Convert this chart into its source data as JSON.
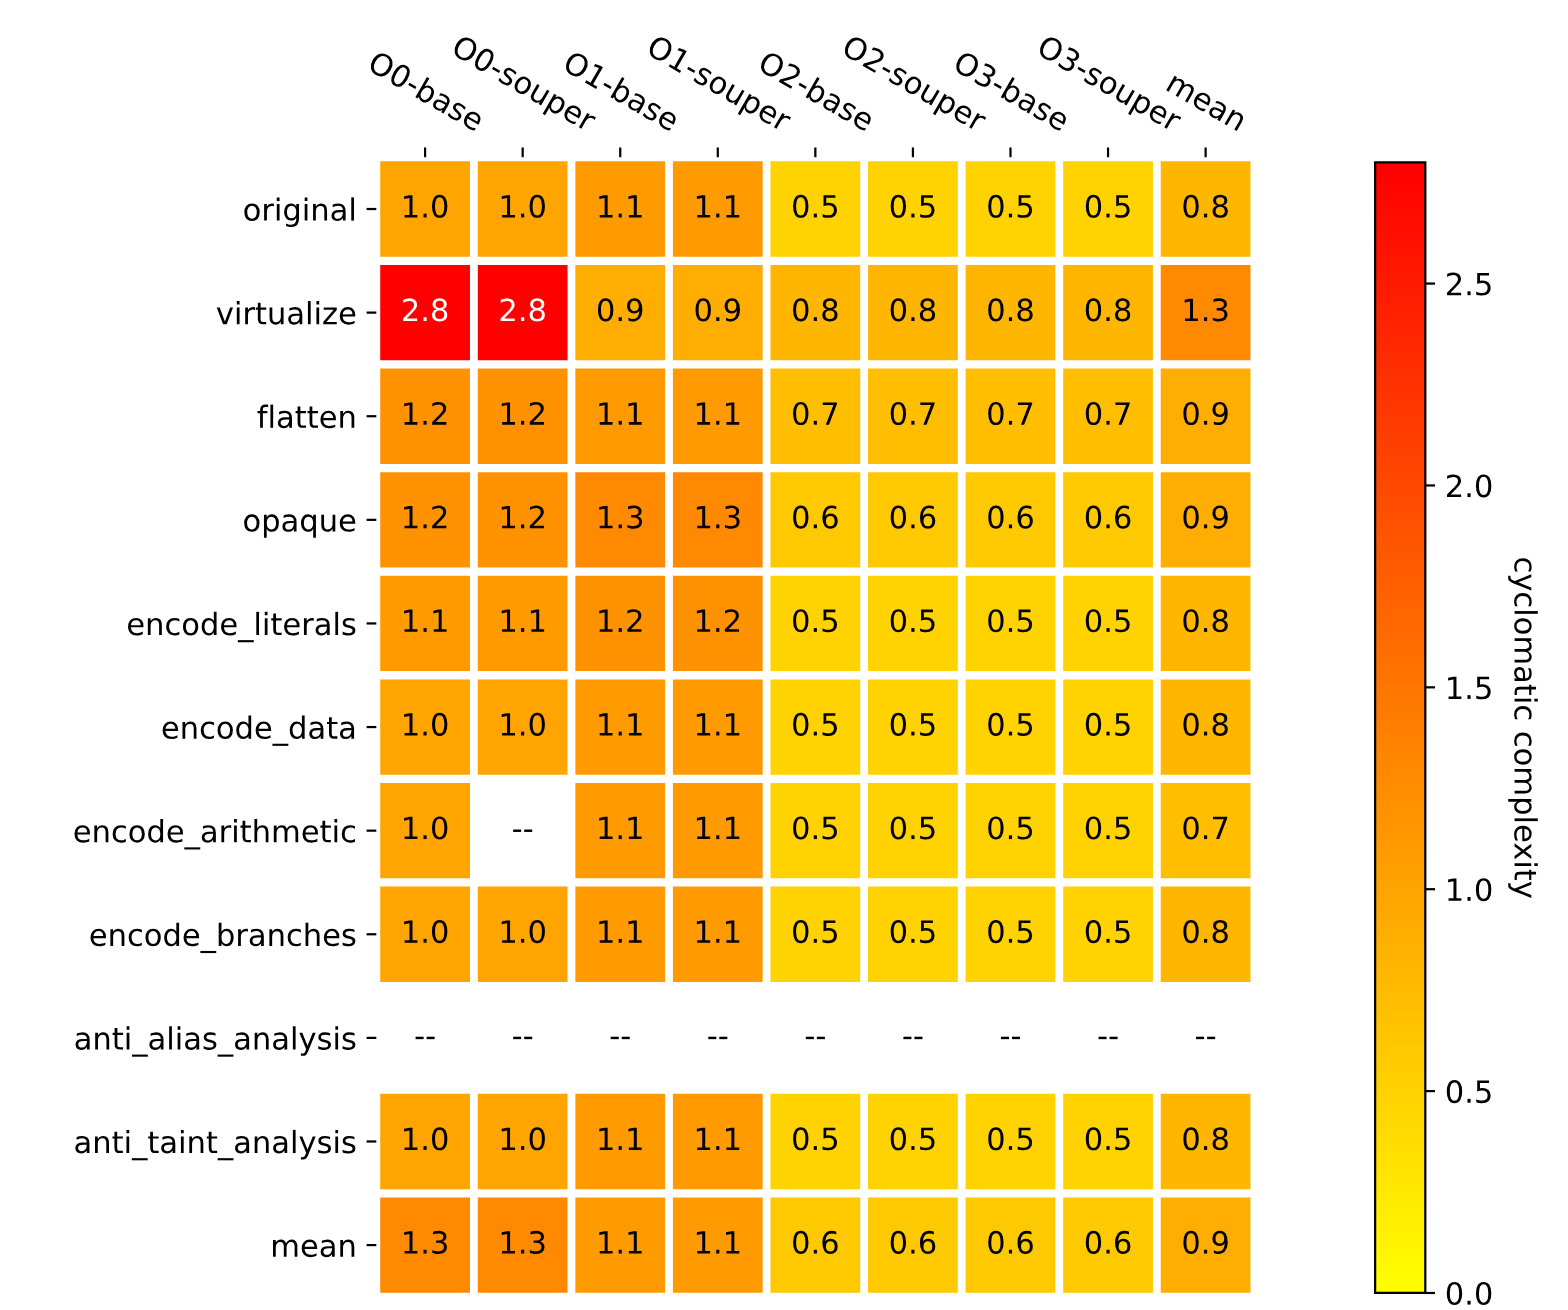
{
  "chart_data": {
    "type": "heatmap",
    "categories": [
      "O0-base",
      "O0-souper",
      "O1-base",
      "O1-souper",
      "O2-base",
      "O2-souper",
      "O3-base",
      "O3-souper",
      "mean"
    ],
    "y_categories": [
      "original",
      "virtualize",
      "flatten",
      "opaque",
      "encode_literals",
      "encode_data",
      "encode_arithmetic",
      "encode_branches",
      "anti_alias_analysis",
      "anti_taint_analysis",
      "mean"
    ],
    "cells": [
      [
        1.0,
        1.0,
        1.1,
        1.1,
        0.5,
        0.5,
        0.5,
        0.5,
        0.8
      ],
      [
        2.8,
        2.8,
        0.9,
        0.9,
        0.8,
        0.8,
        0.8,
        0.8,
        1.3
      ],
      [
        1.2,
        1.2,
        1.1,
        1.1,
        0.7,
        0.7,
        0.7,
        0.7,
        0.9
      ],
      [
        1.2,
        1.2,
        1.3,
        1.3,
        0.6,
        0.6,
        0.6,
        0.6,
        0.9
      ],
      [
        1.1,
        1.1,
        1.2,
        1.2,
        0.5,
        0.5,
        0.5,
        0.5,
        0.8
      ],
      [
        1.0,
        1.0,
        1.1,
        1.1,
        0.5,
        0.5,
        0.5,
        0.5,
        0.8
      ],
      [
        1.0,
        null,
        1.1,
        1.1,
        0.5,
        0.5,
        0.5,
        0.5,
        0.7
      ],
      [
        1.0,
        1.0,
        1.1,
        1.1,
        0.5,
        0.5,
        0.5,
        0.5,
        0.8
      ],
      [
        null,
        null,
        null,
        null,
        null,
        null,
        null,
        null,
        null
      ],
      [
        1.0,
        1.0,
        1.1,
        1.1,
        0.5,
        0.5,
        0.5,
        0.5,
        0.8
      ],
      [
        1.3,
        1.3,
        1.1,
        1.1,
        0.6,
        0.6,
        0.6,
        0.6,
        0.9
      ]
    ],
    "cell_labels": [
      [
        "1.0",
        "1.0",
        "1.1",
        "1.1",
        "0.5",
        "0.5",
        "0.5",
        "0.5",
        "0.8"
      ],
      [
        "2.8",
        "2.8",
        "0.9",
        "0.9",
        "0.8",
        "0.8",
        "0.8",
        "0.8",
        "1.3"
      ],
      [
        "1.2",
        "1.2",
        "1.1",
        "1.1",
        "0.7",
        "0.7",
        "0.7",
        "0.7",
        "0.9"
      ],
      [
        "1.2",
        "1.2",
        "1.3",
        "1.3",
        "0.6",
        "0.6",
        "0.6",
        "0.6",
        "0.9"
      ],
      [
        "1.1",
        "1.1",
        "1.2",
        "1.2",
        "0.5",
        "0.5",
        "0.5",
        "0.5",
        "0.8"
      ],
      [
        "1.0",
        "1.0",
        "1.1",
        "1.1",
        "0.5",
        "0.5",
        "0.5",
        "0.5",
        "0.8"
      ],
      [
        "1.0",
        "--",
        "1.1",
        "1.1",
        "0.5",
        "0.5",
        "0.5",
        "0.5",
        "0.7"
      ],
      [
        "1.0",
        "1.0",
        "1.1",
        "1.1",
        "0.5",
        "0.5",
        "0.5",
        "0.5",
        "0.8"
      ],
      [
        "--",
        "--",
        "--",
        "--",
        "--",
        "--",
        "--",
        "--",
        "--"
      ],
      [
        "1.0",
        "1.0",
        "1.1",
        "1.1",
        "0.5",
        "0.5",
        "0.5",
        "0.5",
        "0.8"
      ],
      [
        "1.3",
        "1.3",
        "1.1",
        "1.1",
        "0.6",
        "0.6",
        "0.6",
        "0.6",
        "0.9"
      ]
    ],
    "clim": [
      0,
      2.8
    ],
    "cticks": [
      {
        "value": 0,
        "label": "0.0"
      },
      {
        "value": 0.5,
        "label": "0.5"
      },
      {
        "value": 1.0,
        "label": "1.0"
      },
      {
        "value": 1.5,
        "label": "1.5"
      },
      {
        "value": 2.0,
        "label": "2.0"
      },
      {
        "value": 2.5,
        "label": "2.5"
      }
    ],
    "clabel": "cyclomatic complexity"
  }
}
